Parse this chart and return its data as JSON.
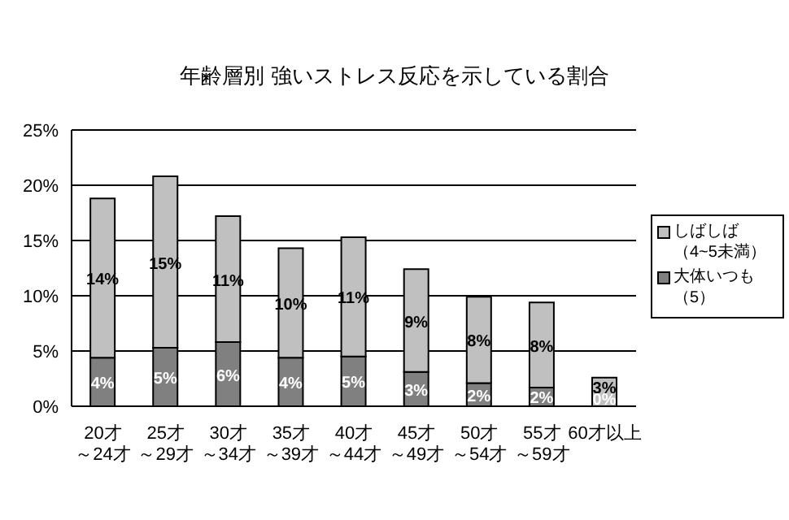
{
  "chart_data": {
    "type": "bar",
    "title": "年齢層別  強いストレス反応を示している割合",
    "categories": [
      "20才～24才",
      "25才～29才",
      "30才～34才",
      "35才～39才",
      "40才～44才",
      "45才～49才",
      "50才～54才",
      "55才～59才",
      "60才以上"
    ],
    "stacked": true,
    "series": [
      {
        "name": "大体いつも（5）",
        "color": "#808080",
        "values": [
          4.4,
          5.3,
          5.8,
          4.4,
          4.5,
          3.1,
          2.1,
          1.7,
          0
        ],
        "value_labels": [
          "4%",
          "5%",
          "6%",
          "4%",
          "5%",
          "3%",
          "2%",
          "2%",
          "0%"
        ]
      },
      {
        "name": "しばしば（4~5未満）",
        "color": "#c0c0c0",
        "values": [
          14.4,
          15.5,
          11.4,
          9.9,
          10.8,
          9.3,
          7.8,
          7.7,
          2.6
        ],
        "value_labels": [
          "14%",
          "15%",
          "11%",
          "10%",
          "11%",
          "9%",
          "8%",
          "8%",
          "3%"
        ]
      }
    ],
    "ylim": [
      0,
      25
    ],
    "yticks": [
      {
        "value": 0,
        "label": "0%"
      },
      {
        "value": 5,
        "label": "5%"
      },
      {
        "value": 10,
        "label": "10%"
      },
      {
        "value": 15,
        "label": "15%"
      },
      {
        "value": 20,
        "label": "20%"
      },
      {
        "value": 25,
        "label": "25%"
      }
    ],
    "grid": "y",
    "legend": "right"
  }
}
